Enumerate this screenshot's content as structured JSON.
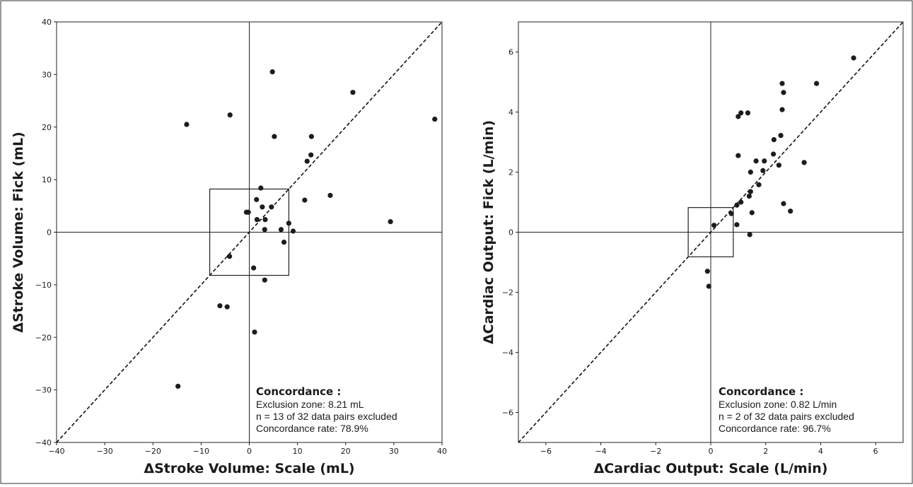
{
  "chart_data": [
    {
      "type": "scatter",
      "xlabel": "ΔStroke Volume: Scale (mL)",
      "ylabel": "ΔStroke Volume: Fick (mL)",
      "xlim": [
        -40,
        40
      ],
      "ylim": [
        -40,
        40
      ],
      "xticks": [
        "−40",
        "−30",
        "−20",
        "−10",
        "0",
        "10",
        "20",
        "30",
        "40"
      ],
      "xtick_values": [
        -40,
        -30,
        -20,
        -10,
        0,
        10,
        20,
        30,
        40
      ],
      "yticks": [
        "−40",
        "−30",
        "−20",
        "−10",
        "0",
        "10",
        "20",
        "30",
        "40"
      ],
      "ytick_values": [
        -40,
        -30,
        -20,
        -10,
        0,
        10,
        20,
        30,
        40
      ],
      "grid": false,
      "identity_line": true,
      "exclusion_zone": 8.21,
      "points": [
        {
          "x": -13.0,
          "y": 20.5
        },
        {
          "x": -4.0,
          "y": 22.3
        },
        {
          "x": 4.8,
          "y": 30.5
        },
        {
          "x": 5.2,
          "y": 18.2
        },
        {
          "x": 21.5,
          "y": 26.6
        },
        {
          "x": 38.5,
          "y": 21.5
        },
        {
          "x": 12.9,
          "y": 18.2
        },
        {
          "x": 12.8,
          "y": 14.7
        },
        {
          "x": 12.0,
          "y": 13.5
        },
        {
          "x": 2.4,
          "y": 8.4
        },
        {
          "x": 16.8,
          "y": 7.0
        },
        {
          "x": 11.5,
          "y": 6.1
        },
        {
          "x": 1.5,
          "y": 6.2
        },
        {
          "x": -0.6,
          "y": 3.8
        },
        {
          "x": -0.2,
          "y": 3.8
        },
        {
          "x": 2.7,
          "y": 4.8
        },
        {
          "x": 4.6,
          "y": 4.8
        },
        {
          "x": 1.6,
          "y": 2.4
        },
        {
          "x": 3.3,
          "y": 2.4
        },
        {
          "x": 8.2,
          "y": 1.7
        },
        {
          "x": 29.3,
          "y": 2.0
        },
        {
          "x": 3.2,
          "y": 0.5
        },
        {
          "x": 6.6,
          "y": 0.5
        },
        {
          "x": 9.1,
          "y": 0.2
        },
        {
          "x": 7.2,
          "y": -1.9
        },
        {
          "x": -4.1,
          "y": -4.6
        },
        {
          "x": 0.9,
          "y": -6.8
        },
        {
          "x": 3.2,
          "y": -9.1
        },
        {
          "x": -6.1,
          "y": -14.0
        },
        {
          "x": -4.6,
          "y": -14.2
        },
        {
          "x": 1.1,
          "y": -19.0
        },
        {
          "x": -14.8,
          "y": -29.3
        }
      ],
      "annotation": {
        "title": "Concordance :",
        "lines": [
          "Exclusion zone: 8.21 mL",
          "n = 13 of 32 data pairs excluded",
          "Concordance rate: 78.9%"
        ]
      }
    },
    {
      "type": "scatter",
      "xlabel": "ΔCardiac Output: Scale (L/min)",
      "ylabel": "ΔCardiac Output: Fick (L/min)",
      "xlim": [
        -7,
        7
      ],
      "ylim": [
        -7,
        7
      ],
      "xticks": [
        "−6",
        "−4",
        "−2",
        "0",
        "2",
        "4",
        "6"
      ],
      "xtick_values": [
        -6,
        -4,
        -2,
        0,
        2,
        4,
        6
      ],
      "yticks": [
        "−6",
        "−4",
        "−2",
        "0",
        "2",
        "4",
        "6"
      ],
      "ytick_values": [
        -6,
        -4,
        -2,
        0,
        2,
        4,
        6
      ],
      "grid": false,
      "identity_line": true,
      "exclusion_zone": 0.82,
      "points": [
        {
          "x": 5.2,
          "y": 5.8
        },
        {
          "x": 2.6,
          "y": 4.95
        },
        {
          "x": 3.85,
          "y": 4.95
        },
        {
          "x": 2.65,
          "y": 4.65
        },
        {
          "x": 1.1,
          "y": 3.97
        },
        {
          "x": 1.35,
          "y": 3.97
        },
        {
          "x": 1.0,
          "y": 3.85
        },
        {
          "x": 2.6,
          "y": 4.08
        },
        {
          "x": 2.55,
          "y": 3.22
        },
        {
          "x": 2.3,
          "y": 3.08
        },
        {
          "x": 1.0,
          "y": 2.55
        },
        {
          "x": 2.28,
          "y": 2.6
        },
        {
          "x": 1.65,
          "y": 2.37
        },
        {
          "x": 1.95,
          "y": 2.37
        },
        {
          "x": 3.4,
          "y": 2.32
        },
        {
          "x": 2.48,
          "y": 2.23
        },
        {
          "x": 1.45,
          "y": 2.0
        },
        {
          "x": 1.9,
          "y": 2.05
        },
        {
          "x": 1.75,
          "y": 1.58
        },
        {
          "x": 1.45,
          "y": 1.35
        },
        {
          "x": 1.4,
          "y": 1.2
        },
        {
          "x": 1.1,
          "y": 1.0
        },
        {
          "x": 0.95,
          "y": 0.9
        },
        {
          "x": 2.65,
          "y": 0.95
        },
        {
          "x": 0.75,
          "y": 0.62
        },
        {
          "x": 1.5,
          "y": 0.65
        },
        {
          "x": 2.9,
          "y": 0.7
        },
        {
          "x": 0.95,
          "y": 0.25
        },
        {
          "x": 0.12,
          "y": 0.23
        },
        {
          "x": 1.42,
          "y": -0.08
        },
        {
          "x": -0.12,
          "y": -1.3
        },
        {
          "x": -0.07,
          "y": -1.8
        }
      ],
      "annotation": {
        "title": "Concordance :",
        "lines": [
          "Exclusion zone: 0.82 L/min",
          "n = 2 of 32 data pairs excluded",
          "Concordance rate: 96.7%"
        ]
      }
    }
  ]
}
